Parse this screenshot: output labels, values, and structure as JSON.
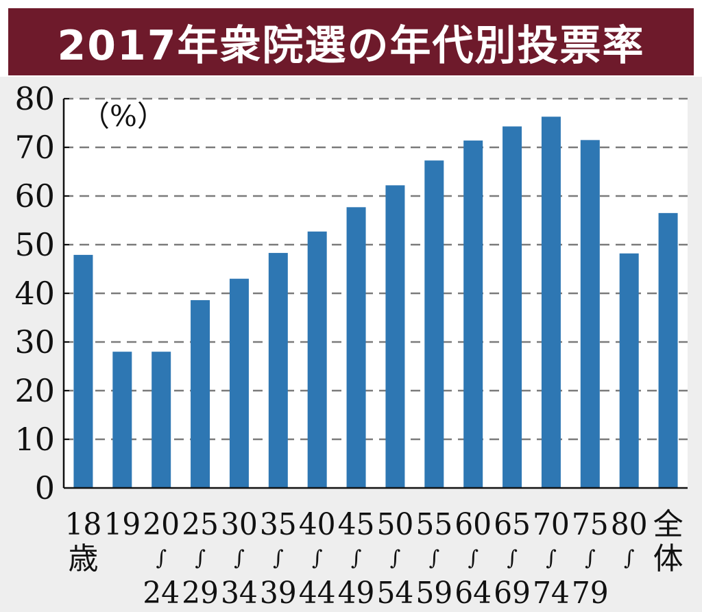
{
  "title": "2017年衆院選の年代別投票率",
  "chart_data": {
    "type": "bar",
    "title": "2017年衆院選の年代別投票率",
    "unit_label": "（%）",
    "ylim": [
      0,
      80
    ],
    "yticks": [
      "0",
      "10",
      "20",
      "30",
      "40",
      "50",
      "60",
      "70",
      "80"
    ],
    "grid": true,
    "bar_color": "#2e77b3",
    "categories": [
      {
        "lines": [
          "18",
          "歳"
        ]
      },
      {
        "lines": [
          "19"
        ]
      },
      {
        "lines": [
          "20",
          "∫",
          "24"
        ]
      },
      {
        "lines": [
          "25",
          "∫",
          "29"
        ]
      },
      {
        "lines": [
          "30",
          "∫",
          "34"
        ]
      },
      {
        "lines": [
          "35",
          "∫",
          "39"
        ]
      },
      {
        "lines": [
          "40",
          "∫",
          "44"
        ]
      },
      {
        "lines": [
          "45",
          "∫",
          "49"
        ]
      },
      {
        "lines": [
          "50",
          "∫",
          "54"
        ]
      },
      {
        "lines": [
          "55",
          "∫",
          "59"
        ]
      },
      {
        "lines": [
          "60",
          "∫",
          "64"
        ]
      },
      {
        "lines": [
          "65",
          "∫",
          "69"
        ]
      },
      {
        "lines": [
          "70",
          "∫",
          "74"
        ]
      },
      {
        "lines": [
          "75",
          "∫",
          "79"
        ]
      },
      {
        "lines": [
          "80",
          "∫"
        ]
      },
      {
        "lines": [
          "全",
          "体"
        ]
      }
    ],
    "values": [
      47.9,
      28.0,
      28.0,
      38.6,
      43.0,
      48.3,
      52.7,
      57.7,
      62.2,
      67.3,
      71.4,
      74.3,
      76.3,
      71.5,
      48.2,
      56.5
    ]
  }
}
